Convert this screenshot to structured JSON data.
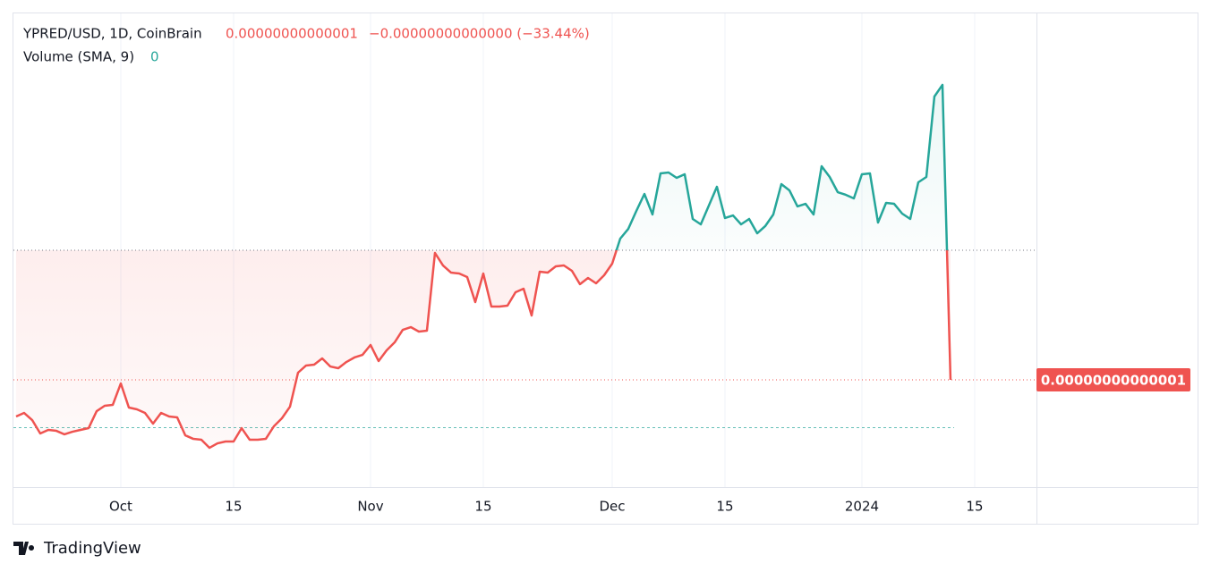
{
  "chart_data": {
    "type": "baseline",
    "symbol": "YPRED/USD, 1D, CoinBrain",
    "close": "0.00000000000001",
    "change": "−0.00000000000000 (−33.44%)",
    "volume_label": "Volume (SMA, 9)",
    "volume_value": "0",
    "brand": "TradingView",
    "up_color": "#26a69a",
    "down_color": "#ef5350",
    "grid": true,
    "baseline": 1.2207e-14,
    "xlim": [
      -0.33,
      126.67
    ],
    "ylim": [
      8.174e-15,
      1.624e-14
    ],
    "xticks": [
      {
        "value": 13,
        "label": "Oct"
      },
      {
        "value": 27,
        "label": "15"
      },
      {
        "value": 44,
        "label": "Nov"
      },
      {
        "value": 58,
        "label": "15"
      },
      {
        "value": 74,
        "label": "Dec"
      },
      {
        "value": 88,
        "label": "15"
      },
      {
        "value": 105,
        "label": "2024"
      },
      {
        "value": 119,
        "label": "15"
      }
    ],
    "x": [
      0,
      1,
      2,
      3,
      4,
      5,
      6,
      7,
      8,
      9,
      10,
      11,
      12,
      13,
      14,
      15,
      16,
      17,
      18,
      19,
      20,
      21,
      22,
      23,
      24,
      25,
      26,
      27,
      28,
      29,
      30,
      31,
      32,
      33,
      34,
      35,
      36,
      37,
      38,
      39,
      40,
      41,
      42,
      43,
      44,
      45,
      46,
      47,
      48,
      49,
      50,
      51,
      52,
      53,
      54,
      55,
      56,
      57,
      58,
      59,
      60,
      61,
      62,
      63,
      64,
      65,
      66,
      67,
      68,
      69,
      70,
      71,
      72,
      73,
      74,
      75,
      76,
      77,
      78,
      79,
      80,
      81,
      82,
      83,
      84,
      85,
      86,
      87,
      88,
      89,
      90,
      91,
      92,
      93,
      94,
      95,
      96,
      97,
      98,
      99,
      100,
      101,
      102,
      103,
      104,
      105,
      106,
      107,
      108,
      109,
      110,
      111,
      112,
      113,
      114,
      115,
      116
    ],
    "values": [
      9.376e-15,
      9.437e-15,
      9.315e-15,
      9.087e-15,
      9.148e-15,
      9.132e-15,
      9.072e-15,
      9.117e-15,
      9.148e-15,
      9.178e-15,
      9.467e-15,
      9.559e-15,
      9.574e-15,
      9.939e-15,
      9.528e-15,
      9.498e-15,
      9.437e-15,
      9.254e-15,
      9.437e-15,
      9.376e-15,
      9.361e-15,
      9.056e-15,
      8.995e-15,
      8.98e-15,
      8.843e-15,
      8.919e-15,
      8.95e-15,
      8.95e-15,
      9.178e-15,
      8.98e-15,
      8.98e-15,
      8.995e-15,
      9.209e-15,
      9.346e-15,
      9.543e-15,
      1.0122e-14,
      1.0244e-14,
      1.0259e-14,
      1.0365e-14,
      1.0228e-14,
      1.0198e-14,
      1.0304e-14,
      1.0381e-14,
      1.0426e-14,
      1.0594e-14,
      1.032e-14,
      1.0502e-14,
      1.0639e-14,
      1.0852e-14,
      1.0898e-14,
      1.0822e-14,
      1.0837e-14,
      1.2161e-14,
      1.1948e-14,
      1.1826e-14,
      1.1811e-14,
      1.175e-14,
      1.1324e-14,
      1.1811e-14,
      1.1248e-14,
      1.1248e-14,
      1.1263e-14,
      1.1492e-14,
      1.1552e-14,
      1.1096e-14,
      1.1842e-14,
      1.1826e-14,
      1.1933e-14,
      1.1948e-14,
      1.1857e-14,
      1.1629e-14,
      1.1735e-14,
      1.1644e-14,
      1.1781e-14,
      1.1979e-14,
      1.2405e-14,
      1.2572e-14,
      1.2877e-14,
      1.3166e-14,
      1.2816e-14,
      1.3516e-14,
      1.3531e-14,
      1.344e-14,
      1.3501e-14,
      1.274e-14,
      1.2648e-14,
      1.2968e-14,
      1.3288e-14,
      1.2755e-14,
      1.28e-14,
      1.2648e-14,
      1.274e-14,
      1.2496e-14,
      1.2618e-14,
      1.2816e-14,
      1.3333e-14,
      1.3227e-14,
      1.2953e-14,
      1.2998e-14,
      1.2816e-14,
      1.3638e-14,
      1.3455e-14,
      1.3196e-14,
      1.3151e-14,
      1.309e-14,
      1.3501e-14,
      1.3516e-14,
      1.2679e-14,
      1.3014e-14,
      1.2998e-14,
      1.2831e-14,
      1.274e-14,
      1.3364e-14,
      1.3455e-14,
      1.4825e-14,
      1.5023e-14,
      1e-14
    ],
    "value_labels": {
      "116": "0.00000000000001"
    }
  }
}
